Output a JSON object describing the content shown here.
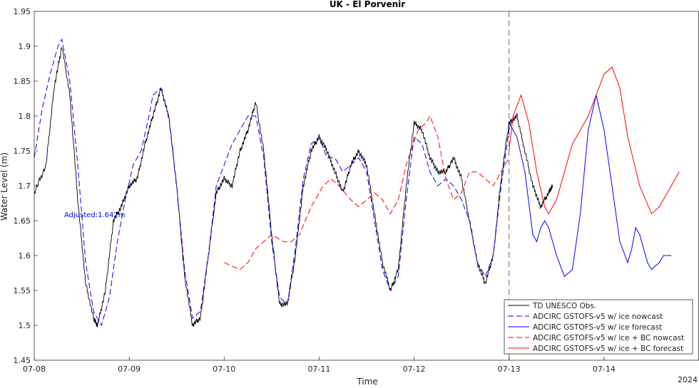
{
  "chart_data": {
    "type": "line",
    "title": "UK - El Porvenir",
    "xlabel": "Time",
    "ylabel": "Water Level (m)",
    "year_label": "2024",
    "annotation": "Adjusted:1.642m",
    "xlim": [
      "07-08 00:00",
      "07-15 00:00"
    ],
    "ylim": [
      1.45,
      1.95
    ],
    "nowcast_forecast_divider": "07-13 00:00",
    "grid": false,
    "legend_position": "bottom-right",
    "x_ticks": [
      "07-08",
      "07-09",
      "07-10",
      "07-11",
      "07-12",
      "07-13",
      "07-14"
    ],
    "y_ticks": [
      "1.45",
      "1.5",
      "1.55",
      "1.6",
      "1.65",
      "1.7",
      "1.75",
      "1.8",
      "1.85",
      "1.9",
      "1.95"
    ],
    "series": [
      {
        "name": "TD UNESCO Obs.",
        "color": "#000000",
        "dash": "solid",
        "points": [
          [
            "07-08 00:00",
            1.69
          ],
          [
            "07-08 03:00",
            1.73
          ],
          [
            "07-08 05:00",
            1.84
          ],
          [
            "07-08 07:00",
            1.9
          ],
          [
            "07-08 09:00",
            1.83
          ],
          [
            "07-08 11:00",
            1.68
          ],
          [
            "07-08 13:00",
            1.56
          ],
          [
            "07-08 15:00",
            1.51
          ],
          [
            "07-08 16:00",
            1.5
          ],
          [
            "07-08 18:00",
            1.55
          ],
          [
            "07-08 20:00",
            1.65
          ],
          [
            "07-08 22:00",
            1.67
          ],
          [
            "07-09 00:00",
            1.7
          ],
          [
            "07-09 02:00",
            1.71
          ],
          [
            "07-09 04:00",
            1.76
          ],
          [
            "07-09 06:00",
            1.8
          ],
          [
            "07-09 08:00",
            1.84
          ],
          [
            "07-09 10:00",
            1.8
          ],
          [
            "07-09 12:00",
            1.7
          ],
          [
            "07-09 14:00",
            1.57
          ],
          [
            "07-09 16:00",
            1.5
          ],
          [
            "07-09 18:00",
            1.51
          ],
          [
            "07-09 20:00",
            1.6
          ],
          [
            "07-09 22:00",
            1.69
          ],
          [
            "07-10 00:00",
            1.71
          ],
          [
            "07-10 02:00",
            1.7
          ],
          [
            "07-10 04:00",
            1.75
          ],
          [
            "07-10 06:00",
            1.78
          ],
          [
            "07-10 08:00",
            1.82
          ],
          [
            "07-10 10:00",
            1.75
          ],
          [
            "07-10 12:00",
            1.63
          ],
          [
            "07-10 14:00",
            1.53
          ],
          [
            "07-10 16:00",
            1.53
          ],
          [
            "07-10 18:00",
            1.6
          ],
          [
            "07-10 20:00",
            1.7
          ],
          [
            "07-10 22:00",
            1.75
          ],
          [
            "07-11 00:00",
            1.77
          ],
          [
            "07-11 02:00",
            1.75
          ],
          [
            "07-11 04:00",
            1.72
          ],
          [
            "07-11 06:00",
            1.69
          ],
          [
            "07-11 08:00",
            1.73
          ],
          [
            "07-11 10:00",
            1.75
          ],
          [
            "07-11 12:00",
            1.73
          ],
          [
            "07-11 14:00",
            1.66
          ],
          [
            "07-11 16:00",
            1.59
          ],
          [
            "07-11 18:00",
            1.55
          ],
          [
            "07-11 20:00",
            1.58
          ],
          [
            "07-11 22:00",
            1.7
          ],
          [
            "07-12 00:00",
            1.79
          ],
          [
            "07-12 02:00",
            1.78
          ],
          [
            "07-12 04:00",
            1.74
          ],
          [
            "07-12 06:00",
            1.72
          ],
          [
            "07-12 08:00",
            1.72
          ],
          [
            "07-12 10:00",
            1.74
          ],
          [
            "07-12 12:00",
            1.71
          ],
          [
            "07-12 14:00",
            1.65
          ],
          [
            "07-12 16:00",
            1.59
          ],
          [
            "07-12 18:00",
            1.56
          ],
          [
            "07-12 20:00",
            1.6
          ],
          [
            "07-12 22:00",
            1.71
          ],
          [
            "07-13 00:00",
            1.79
          ],
          [
            "07-13 02:00",
            1.8
          ],
          [
            "07-13 04:00",
            1.75
          ],
          [
            "07-13 06:00",
            1.7
          ],
          [
            "07-13 08:00",
            1.67
          ],
          [
            "07-13 10:00",
            1.69
          ],
          [
            "07-13 11:00",
            1.7
          ]
        ]
      },
      {
        "name": "ADCIRC GSTOFS-v5 w/ ice nowcast",
        "color": "#0000ff",
        "dash": "dashed",
        "points": [
          [
            "07-08 00:00",
            1.74
          ],
          [
            "07-08 02:00",
            1.81
          ],
          [
            "07-08 04:00",
            1.86
          ],
          [
            "07-08 06:00",
            1.9
          ],
          [
            "07-08 07:00",
            1.91
          ],
          [
            "07-08 09:00",
            1.85
          ],
          [
            "07-08 11:00",
            1.73
          ],
          [
            "07-08 13:00",
            1.59
          ],
          [
            "07-08 15:00",
            1.52
          ],
          [
            "07-08 17:00",
            1.5
          ],
          [
            "07-08 19:00",
            1.54
          ],
          [
            "07-08 21:00",
            1.62
          ],
          [
            "07-08 23:00",
            1.68
          ],
          [
            "07-09 01:00",
            1.73
          ],
          [
            "07-09 03:00",
            1.75
          ],
          [
            "07-09 05:00",
            1.8
          ],
          [
            "07-09 06:00",
            1.83
          ],
          [
            "07-09 08:00",
            1.84
          ],
          [
            "07-09 10:00",
            1.8
          ],
          [
            "07-09 12:00",
            1.7
          ],
          [
            "07-09 14:00",
            1.58
          ],
          [
            "07-09 16:00",
            1.51
          ],
          [
            "07-09 18:00",
            1.52
          ],
          [
            "07-09 20:00",
            1.6
          ],
          [
            "07-09 22:00",
            1.7
          ],
          [
            "07-10 00:00",
            1.73
          ],
          [
            "07-10 02:00",
            1.76
          ],
          [
            "07-10 04:00",
            1.78
          ],
          [
            "07-10 06:00",
            1.8
          ],
          [
            "07-10 08:00",
            1.8
          ],
          [
            "07-10 10:00",
            1.74
          ],
          [
            "07-10 12:00",
            1.62
          ],
          [
            "07-10 14:00",
            1.54
          ],
          [
            "07-10 16:00",
            1.53
          ],
          [
            "07-10 18:00",
            1.61
          ],
          [
            "07-10 20:00",
            1.71
          ],
          [
            "07-10 22:00",
            1.76
          ],
          [
            "07-11 00:00",
            1.77
          ],
          [
            "07-11 02:00",
            1.74
          ],
          [
            "07-11 04:00",
            1.74
          ],
          [
            "07-11 06:00",
            1.72
          ],
          [
            "07-11 08:00",
            1.73
          ],
          [
            "07-11 10:00",
            1.74
          ],
          [
            "07-11 12:00",
            1.72
          ],
          [
            "07-11 14:00",
            1.65
          ],
          [
            "07-11 16:00",
            1.58
          ],
          [
            "07-11 18:00",
            1.55
          ],
          [
            "07-11 20:00",
            1.57
          ],
          [
            "07-11 22:00",
            1.68
          ],
          [
            "07-12 00:00",
            1.77
          ],
          [
            "07-12 02:00",
            1.76
          ],
          [
            "07-12 04:00",
            1.72
          ],
          [
            "07-12 06:00",
            1.7
          ],
          [
            "07-12 08:00",
            1.71
          ],
          [
            "07-12 10:00",
            1.7
          ],
          [
            "07-12 12:00",
            1.68
          ],
          [
            "07-12 14:00",
            1.65
          ],
          [
            "07-12 16:00",
            1.59
          ],
          [
            "07-12 18:00",
            1.57
          ],
          [
            "07-12 20:00",
            1.6
          ],
          [
            "07-12 22:00",
            1.7
          ],
          [
            "07-13 00:00",
            1.78
          ],
          [
            "07-13 01:00",
            1.8
          ]
        ]
      },
      {
        "name": "ADCIRC GSTOFS-v5 w/ ice forecast",
        "color": "#0000ff",
        "dash": "solid",
        "points": [
          [
            "07-13 00:00",
            1.79
          ],
          [
            "07-13 02:00",
            1.77
          ],
          [
            "07-13 04:00",
            1.72
          ],
          [
            "07-13 06:00",
            1.63
          ],
          [
            "07-13 07:00",
            1.62
          ],
          [
            "07-13 08:00",
            1.64
          ],
          [
            "07-13 09:00",
            1.65
          ],
          [
            "07-13 10:00",
            1.64
          ],
          [
            "07-13 12:00",
            1.6
          ],
          [
            "07-13 14:00",
            1.57
          ],
          [
            "07-13 16:00",
            1.58
          ],
          [
            "07-13 18:00",
            1.66
          ],
          [
            "07-13 20:00",
            1.78
          ],
          [
            "07-13 22:00",
            1.83
          ],
          [
            "07-14 00:00",
            1.78
          ],
          [
            "07-14 02:00",
            1.7
          ],
          [
            "07-14 04:00",
            1.62
          ],
          [
            "07-14 06:00",
            1.59
          ],
          [
            "07-14 07:00",
            1.61
          ],
          [
            "07-14 08:00",
            1.64
          ],
          [
            "07-14 09:00",
            1.63
          ],
          [
            "07-14 11:00",
            1.59
          ],
          [
            "07-14 12:00",
            1.58
          ],
          [
            "07-14 14:00",
            1.59
          ],
          [
            "07-14 15:00",
            1.6
          ],
          [
            "07-14 17:00",
            1.6
          ]
        ]
      },
      {
        "name": "ADCIRC GSTOFS-v5 w/ ice + BC nowcast",
        "color": "#ff0000",
        "dash": "dashed",
        "points": [
          [
            "07-10 00:00",
            1.59
          ],
          [
            "07-10 04:00",
            1.58
          ],
          [
            "07-10 06:00",
            1.59
          ],
          [
            "07-10 08:00",
            1.61
          ],
          [
            "07-10 10:00",
            1.62
          ],
          [
            "07-10 12:00",
            1.63
          ],
          [
            "07-10 15:00",
            1.62
          ],
          [
            "07-10 17:00",
            1.62
          ],
          [
            "07-10 19:00",
            1.63
          ],
          [
            "07-10 22:00",
            1.67
          ],
          [
            "07-11 01:00",
            1.7
          ],
          [
            "07-11 03:00",
            1.71
          ],
          [
            "07-11 05:00",
            1.7
          ],
          [
            "07-11 08:00",
            1.68
          ],
          [
            "07-11 10:00",
            1.67
          ],
          [
            "07-11 12:00",
            1.68
          ],
          [
            "07-11 14:00",
            1.69
          ],
          [
            "07-11 16:00",
            1.68
          ],
          [
            "07-11 18:00",
            1.66
          ],
          [
            "07-11 20:00",
            1.68
          ],
          [
            "07-11 22:00",
            1.73
          ],
          [
            "07-12 01:00",
            1.78
          ],
          [
            "07-12 03:00",
            1.79
          ],
          [
            "07-12 04:00",
            1.8
          ],
          [
            "07-12 06:00",
            1.77
          ],
          [
            "07-12 08:00",
            1.71
          ],
          [
            "07-12 10:00",
            1.68
          ],
          [
            "07-12 12:00",
            1.69
          ],
          [
            "07-12 14:00",
            1.72
          ],
          [
            "07-12 16:00",
            1.72
          ],
          [
            "07-12 18:00",
            1.71
          ],
          [
            "07-12 20:00",
            1.7
          ],
          [
            "07-12 22:00",
            1.72
          ],
          [
            "07-13 00:00",
            1.74
          ]
        ]
      },
      {
        "name": "ADCIRC GSTOFS-v5 w/ ice + BC forecast",
        "color": "#ff0000",
        "dash": "solid",
        "points": [
          [
            "07-13 00:00",
            1.75
          ],
          [
            "07-13 01:00",
            1.8
          ],
          [
            "07-13 03:00",
            1.83
          ],
          [
            "07-13 05:00",
            1.79
          ],
          [
            "07-13 07:00",
            1.72
          ],
          [
            "07-13 09:00",
            1.67
          ],
          [
            "07-13 10:00",
            1.66
          ],
          [
            "07-13 12:00",
            1.68
          ],
          [
            "07-13 14:00",
            1.72
          ],
          [
            "07-13 16:00",
            1.76
          ],
          [
            "07-13 18:00",
            1.78
          ],
          [
            "07-13 20:00",
            1.8
          ],
          [
            "07-13 22:00",
            1.83
          ],
          [
            "07-14 00:00",
            1.86
          ],
          [
            "07-14 02:00",
            1.87
          ],
          [
            "07-14 04:00",
            1.84
          ],
          [
            "07-14 06:00",
            1.77
          ],
          [
            "07-14 09:00",
            1.7
          ],
          [
            "07-14 12:00",
            1.66
          ],
          [
            "07-14 14:00",
            1.67
          ],
          [
            "07-14 16:00",
            1.69
          ],
          [
            "07-14 18:00",
            1.71
          ],
          [
            "07-14 19:00",
            1.72
          ]
        ]
      }
    ]
  }
}
